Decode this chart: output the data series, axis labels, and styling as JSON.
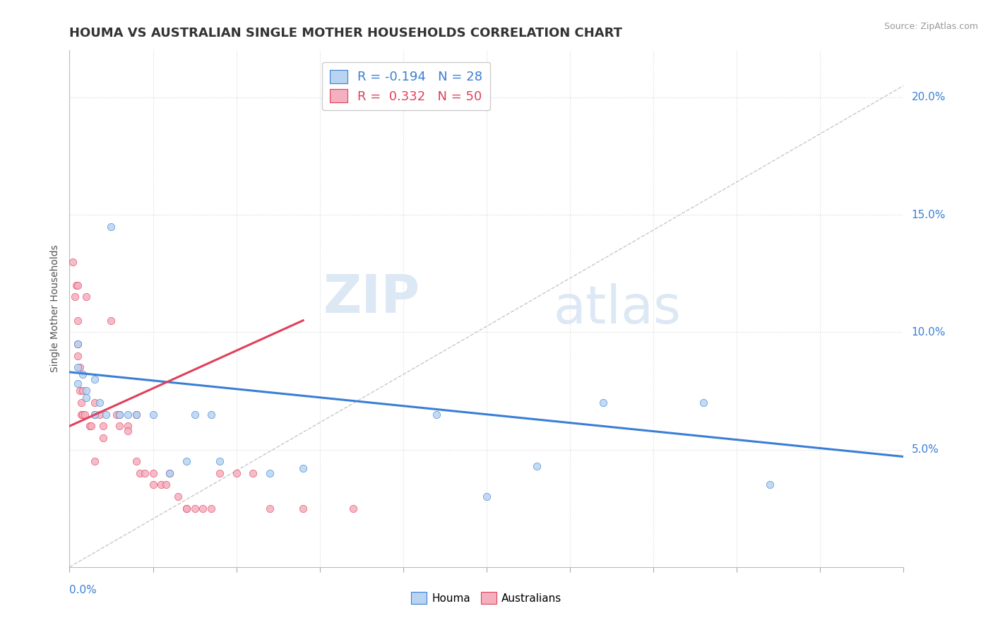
{
  "title": "HOUMA VS AUSTRALIAN SINGLE MOTHER HOUSEHOLDS CORRELATION CHART",
  "source": "Source: ZipAtlas.com",
  "ylabel": "Single Mother Households",
  "watermark_zip": "ZIP",
  "watermark_atlas": "atlas",
  "legend_houma": "R = -0.194   N = 28",
  "legend_australians": "R =  0.332   N = 50",
  "houma_color": "#b8d4f0",
  "australians_color": "#f5b0c0",
  "houma_line_color": "#3a7fd5",
  "australians_line_color": "#e0405a",
  "background_color": "#ffffff",
  "xlim": [
    0.0,
    0.5
  ],
  "ylim": [
    0.0,
    0.22
  ],
  "yticks": [
    0.05,
    0.1,
    0.15,
    0.2
  ],
  "ytick_labels": [
    "5.0%",
    "10.0%",
    "15.0%",
    "20.0%"
  ],
  "houma_scatter": [
    [
      0.005,
      0.085
    ],
    [
      0.005,
      0.095
    ],
    [
      0.005,
      0.078
    ],
    [
      0.008,
      0.082
    ],
    [
      0.01,
      0.075
    ],
    [
      0.01,
      0.072
    ],
    [
      0.015,
      0.08
    ],
    [
      0.015,
      0.065
    ],
    [
      0.018,
      0.07
    ],
    [
      0.022,
      0.065
    ],
    [
      0.025,
      0.145
    ],
    [
      0.03,
      0.065
    ],
    [
      0.035,
      0.065
    ],
    [
      0.04,
      0.065
    ],
    [
      0.05,
      0.065
    ],
    [
      0.06,
      0.04
    ],
    [
      0.07,
      0.045
    ],
    [
      0.075,
      0.065
    ],
    [
      0.085,
      0.065
    ],
    [
      0.09,
      0.045
    ],
    [
      0.12,
      0.04
    ],
    [
      0.14,
      0.042
    ],
    [
      0.22,
      0.065
    ],
    [
      0.25,
      0.03
    ],
    [
      0.28,
      0.043
    ],
    [
      0.32,
      0.07
    ],
    [
      0.38,
      0.07
    ],
    [
      0.42,
      0.035
    ]
  ],
  "australians_scatter": [
    [
      0.002,
      0.13
    ],
    [
      0.003,
      0.115
    ],
    [
      0.004,
      0.12
    ],
    [
      0.005,
      0.12
    ],
    [
      0.005,
      0.105
    ],
    [
      0.005,
      0.095
    ],
    [
      0.005,
      0.09
    ],
    [
      0.006,
      0.085
    ],
    [
      0.006,
      0.075
    ],
    [
      0.007,
      0.07
    ],
    [
      0.007,
      0.065
    ],
    [
      0.008,
      0.075
    ],
    [
      0.008,
      0.065
    ],
    [
      0.009,
      0.065
    ],
    [
      0.01,
      0.115
    ],
    [
      0.012,
      0.06
    ],
    [
      0.013,
      0.06
    ],
    [
      0.015,
      0.07
    ],
    [
      0.015,
      0.065
    ],
    [
      0.015,
      0.045
    ],
    [
      0.018,
      0.065
    ],
    [
      0.02,
      0.06
    ],
    [
      0.02,
      0.055
    ],
    [
      0.025,
      0.105
    ],
    [
      0.028,
      0.065
    ],
    [
      0.03,
      0.065
    ],
    [
      0.03,
      0.06
    ],
    [
      0.035,
      0.06
    ],
    [
      0.035,
      0.058
    ],
    [
      0.04,
      0.065
    ],
    [
      0.04,
      0.045
    ],
    [
      0.042,
      0.04
    ],
    [
      0.045,
      0.04
    ],
    [
      0.05,
      0.04
    ],
    [
      0.05,
      0.035
    ],
    [
      0.055,
      0.035
    ],
    [
      0.058,
      0.035
    ],
    [
      0.06,
      0.04
    ],
    [
      0.065,
      0.03
    ],
    [
      0.07,
      0.025
    ],
    [
      0.07,
      0.025
    ],
    [
      0.075,
      0.025
    ],
    [
      0.08,
      0.025
    ],
    [
      0.085,
      0.025
    ],
    [
      0.09,
      0.04
    ],
    [
      0.1,
      0.04
    ],
    [
      0.11,
      0.04
    ],
    [
      0.12,
      0.025
    ],
    [
      0.14,
      0.025
    ],
    [
      0.17,
      0.025
    ]
  ],
  "houma_trendline_x": [
    0.0,
    0.5
  ],
  "houma_trendline_y": [
    0.083,
    0.047
  ],
  "australians_trendline_x": [
    0.0,
    0.14
  ],
  "australians_trendline_y": [
    0.06,
    0.105
  ],
  "diagonal_line_x": [
    0.0,
    0.5
  ],
  "diagonal_line_y": [
    0.0,
    0.205
  ],
  "title_fontsize": 13,
  "axis_fontsize": 10,
  "tick_fontsize": 11,
  "source_fontsize": 9
}
